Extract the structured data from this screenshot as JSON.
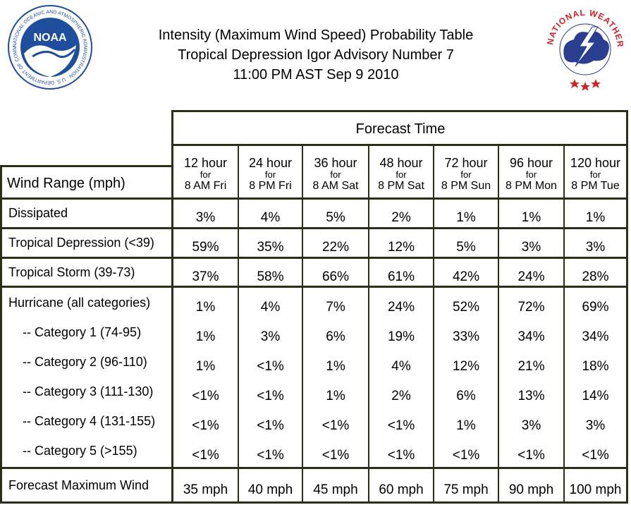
{
  "header": {
    "title_line1": "Intensity (Maximum Wind Speed) Probability Table",
    "title_line2": "Tropical Depression Igor Advisory Number 7",
    "title_line3": "11:00 PM AST Sep 9 2010",
    "noaa_logo_text": "NOAA",
    "noaa_ring_text": "NATIONAL OCEANIC AND ATMOSPHERIC ADMINISTRATION · U.S. DEPARTMENT OF COMMERCE",
    "nws_ring_text": "NATIONAL WEATHER SERVICE",
    "noaa_blue": "#1e4e9c",
    "nws_red": "#d0202a"
  },
  "table": {
    "forecast_time_label": "Forecast Time",
    "wind_range_label": "Wind Range (mph)",
    "columns": [
      {
        "hours": "12 hour",
        "for": "for",
        "time": "8 AM Fri"
      },
      {
        "hours": "24 hour",
        "for": "for",
        "time": "8 PM Fri"
      },
      {
        "hours": "36 hour",
        "for": "for",
        "time": "8 AM Sat"
      },
      {
        "hours": "48 hour",
        "for": "for",
        "time": "8 PM Sat"
      },
      {
        "hours": "72 hour",
        "for": "for",
        "time": "8 PM Sun"
      },
      {
        "hours": "96 hour",
        "for": "for",
        "time": "8 PM Mon"
      },
      {
        "hours": "120 hour",
        "for": "for",
        "time": "8 PM Tue"
      }
    ],
    "rows": [
      {
        "label": "Dissipated",
        "values": [
          "3%",
          "4%",
          "5%",
          "2%",
          "1%",
          "1%",
          "1%"
        ]
      },
      {
        "label": "Tropical Depression (<39)",
        "values": [
          "59%",
          "35%",
          "22%",
          "12%",
          "5%",
          "3%",
          "3%"
        ]
      },
      {
        "label": "Tropical Storm (39-73)",
        "values": [
          "37%",
          "58%",
          "66%",
          "61%",
          "42%",
          "24%",
          "28%"
        ]
      },
      {
        "label": "Hurricane (all categories)",
        "values": [
          "1%",
          "4%",
          "7%",
          "24%",
          "52%",
          "72%",
          "69%"
        ]
      },
      {
        "label": "-- Category 1 (74-95)",
        "values": [
          "1%",
          "3%",
          "6%",
          "19%",
          "33%",
          "34%",
          "34%"
        ]
      },
      {
        "label": "-- Category 2 (96-110)",
        "values": [
          "1%",
          "<1%",
          "1%",
          "4%",
          "12%",
          "21%",
          "18%"
        ]
      },
      {
        "label": "-- Category 3 (111-130)",
        "values": [
          "<1%",
          "<1%",
          "1%",
          "2%",
          "6%",
          "13%",
          "14%"
        ]
      },
      {
        "label": "-- Category 4 (131-155)",
        "values": [
          "<1%",
          "<1%",
          "<1%",
          "<1%",
          "1%",
          "3%",
          "3%"
        ]
      },
      {
        "label": "-- Category 5 (>155)",
        "values": [
          "<1%",
          "<1%",
          "<1%",
          "<1%",
          "<1%",
          "<1%",
          "<1%"
        ]
      }
    ],
    "forecast_max_wind": {
      "label": "Forecast Maximum Wind",
      "values": [
        "35 mph",
        "40 mph",
        "45 mph",
        "60 mph",
        "75 mph",
        "90 mph",
        "100 mph"
      ]
    }
  }
}
